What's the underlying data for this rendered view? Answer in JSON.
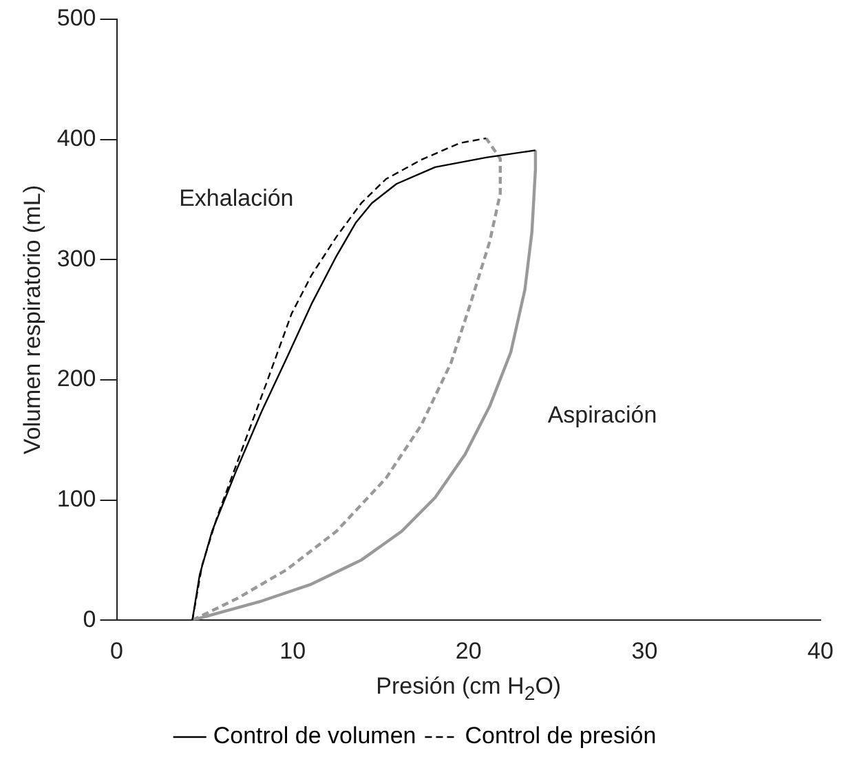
{
  "chart_data": {
    "type": "line",
    "xlabel": "Presión (cm H$_{2}$O)",
    "ylabel": "Volumen respiratorio (mL)",
    "xlim": [
      0,
      40
    ],
    "xticks": [
      0,
      10,
      20,
      30,
      40
    ],
    "ylim": [
      0,
      500
    ],
    "yticks": [
      0,
      100,
      200,
      300,
      400,
      500
    ],
    "grid": false,
    "legend": "bottom",
    "marker": "none",
    "series": [
      {
        "name": "Control de volumen",
        "color": "#000000",
        "line_style": "solid",
        "x": [
          4.3,
          4.72,
          5.42,
          6.84,
          8.25,
          9.66,
          11.07,
          12.49,
          13.6,
          14.5,
          15.9,
          18.1,
          21.0,
          23.8
        ],
        "values": [
          0,
          38,
          74,
          126,
          174,
          218,
          263,
          303,
          331,
          347,
          363,
          377,
          385,
          391
        ]
      },
      {
        "color": "#999999",
        "line_style": "solid",
        "x": [
          4.3,
          8.25,
          11.07,
          13.9,
          16.2,
          18.1,
          19.8,
          21.2,
          22.4,
          23.2,
          23.6,
          23.8,
          23.8
        ],
        "values": [
          0,
          16,
          30,
          50,
          74,
          102,
          138,
          178,
          223,
          275,
          323,
          375,
          391
        ]
      },
      {
        "name": "Control de presión",
        "color": "#000000",
        "line_style": "dashed",
        "x": [
          4.3,
          4.86,
          5.71,
          7.12,
          8.53,
          9.94,
          11.07,
          12.49,
          13.9,
          15.3,
          17.3,
          19.5,
          21.0
        ],
        "values": [
          0,
          46,
          86,
          142,
          198,
          255,
          287,
          319,
          347,
          367,
          383,
          397,
          401
        ]
      },
      {
        "color": "#999999",
        "line_style": "dashed",
        "x": [
          4.3,
          6.84,
          9.66,
          12.49,
          15.3,
          17.3,
          19.0,
          20.1,
          21.2,
          21.8,
          21.8,
          21.0
        ],
        "values": [
          0,
          18,
          42,
          74,
          118,
          162,
          214,
          263,
          315,
          355,
          384,
          401
        ]
      }
    ],
    "annotations": [
      "Exhalación",
      "Aspiración"
    ]
  }
}
